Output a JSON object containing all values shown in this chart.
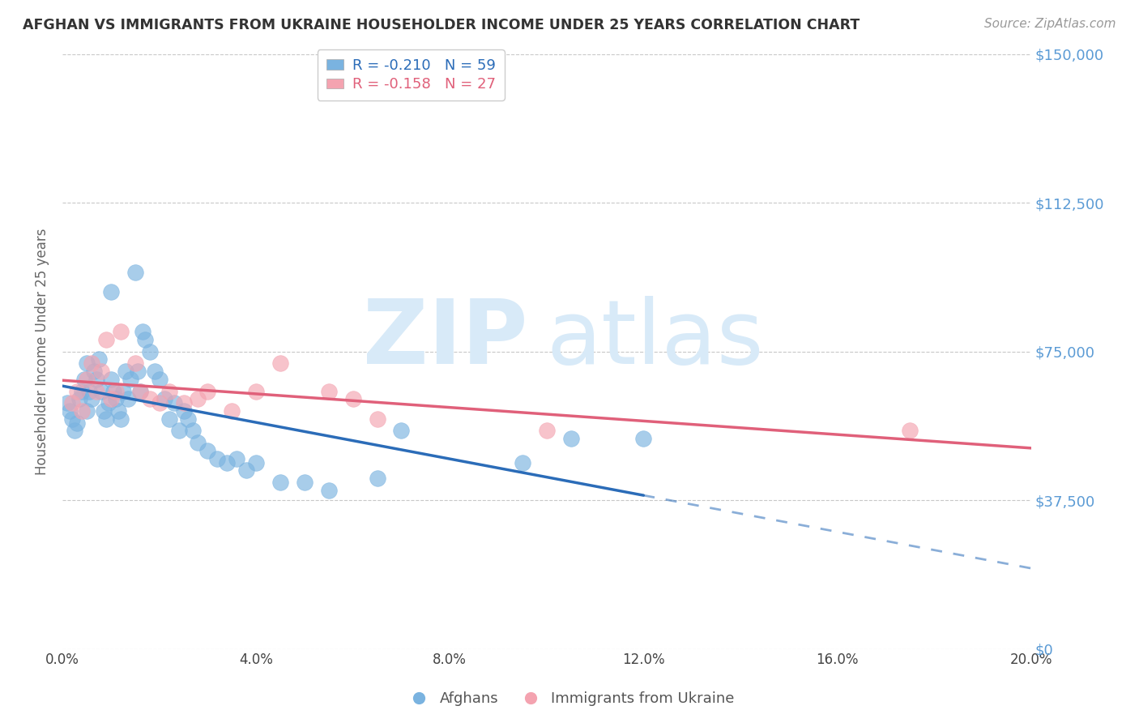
{
  "title": "AFGHAN VS IMMIGRANTS FROM UKRAINE HOUSEHOLDER INCOME UNDER 25 YEARS CORRELATION CHART",
  "source": "Source: ZipAtlas.com",
  "ylabel": "Householder Income Under 25 years",
  "xlabel_vals": [
    0.0,
    4.0,
    8.0,
    12.0,
    16.0,
    20.0
  ],
  "ylabel_vals": [
    0,
    37500,
    75000,
    112500,
    150000
  ],
  "xmin": 0.0,
  "xmax": 20.0,
  "ymin": 0,
  "ymax": 150000,
  "legend_afghan": "R = -0.210   N = 59",
  "legend_ukraine": "R = -0.158   N = 27",
  "legend_label_afghan": "Afghans",
  "legend_label_ukraine": "Immigrants from Ukraine",
  "afghan_color": "#7ab3e0",
  "ukraine_color": "#f4a3b0",
  "trendline_afghan_color": "#2b6cb8",
  "trendline_ukraine_color": "#e0607a",
  "afghan_x": [
    0.1,
    0.15,
    0.2,
    0.25,
    0.3,
    0.35,
    0.4,
    0.45,
    0.5,
    0.5,
    0.55,
    0.6,
    0.65,
    0.7,
    0.75,
    0.8,
    0.85,
    0.9,
    0.95,
    1.0,
    1.0,
    1.05,
    1.1,
    1.15,
    1.2,
    1.25,
    1.3,
    1.35,
    1.4,
    1.5,
    1.55,
    1.6,
    1.65,
    1.7,
    1.8,
    1.9,
    2.0,
    2.1,
    2.2,
    2.3,
    2.4,
    2.5,
    2.6,
    2.7,
    2.8,
    3.0,
    3.2,
    3.4,
    3.6,
    3.8,
    4.0,
    4.5,
    5.0,
    5.5,
    6.5,
    7.0,
    9.5,
    10.5,
    12.0
  ],
  "afghan_y": [
    62000,
    60000,
    58000,
    55000,
    57000,
    63000,
    65000,
    68000,
    72000,
    60000,
    65000,
    63000,
    70000,
    68000,
    73000,
    65000,
    60000,
    58000,
    62000,
    90000,
    68000,
    65000,
    63000,
    60000,
    58000,
    65000,
    70000,
    63000,
    68000,
    95000,
    70000,
    65000,
    80000,
    78000,
    75000,
    70000,
    68000,
    63000,
    58000,
    62000,
    55000,
    60000,
    58000,
    55000,
    52000,
    50000,
    48000,
    47000,
    48000,
    45000,
    47000,
    42000,
    42000,
    40000,
    43000,
    55000,
    47000,
    53000,
    53000
  ],
  "ukraine_x": [
    0.2,
    0.3,
    0.4,
    0.5,
    0.6,
    0.7,
    0.8,
    0.9,
    1.0,
    1.1,
    1.2,
    1.5,
    1.6,
    1.8,
    2.0,
    2.2,
    2.5,
    2.8,
    3.0,
    3.5,
    4.0,
    4.5,
    5.5,
    6.0,
    6.5,
    10.0,
    17.5
  ],
  "ukraine_y": [
    62000,
    65000,
    60000,
    68000,
    72000,
    65000,
    70000,
    78000,
    63000,
    65000,
    80000,
    72000,
    65000,
    63000,
    62000,
    65000,
    62000,
    63000,
    65000,
    60000,
    65000,
    72000,
    65000,
    63000,
    58000,
    55000,
    55000
  ],
  "afghan_solid_xmax": 12.0,
  "background_color": "#ffffff",
  "grid_color": "#c8c8c8",
  "title_color": "#333333",
  "axis_label_color": "#5b9bd5",
  "watermark_color": "#d8eaf8",
  "watermark_fontsize": 80
}
